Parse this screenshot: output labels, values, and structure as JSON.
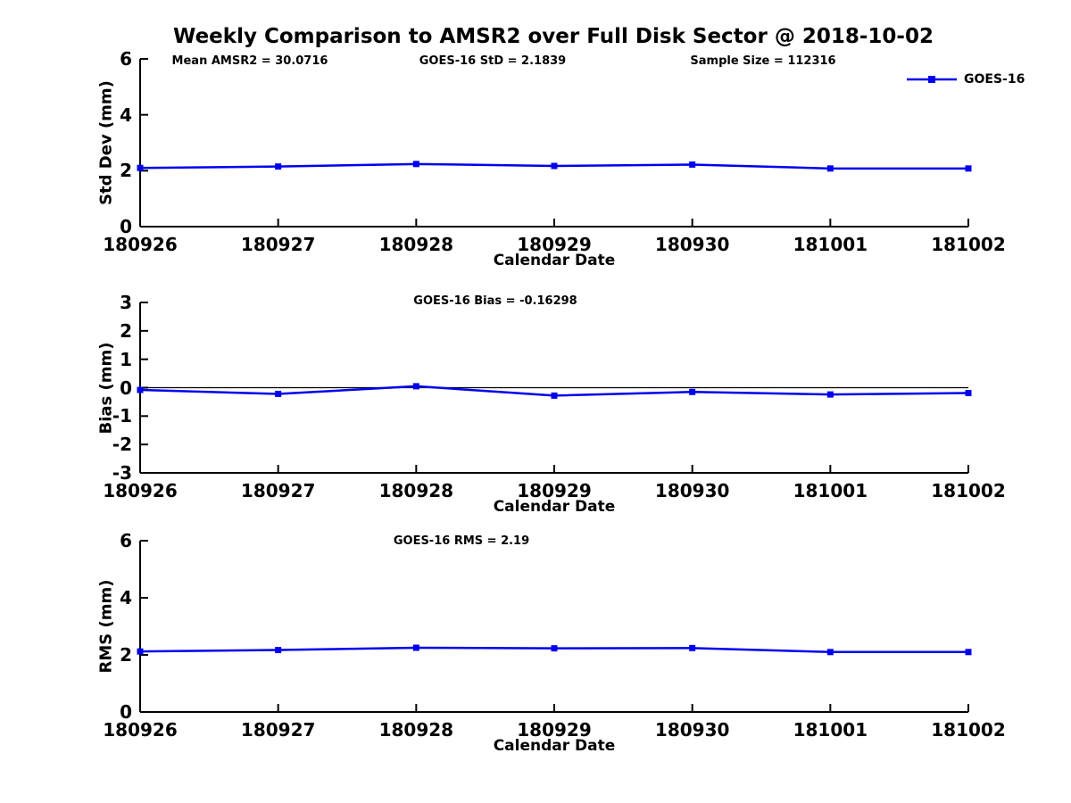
{
  "title": "Weekly Comparison to AMSR2 over Full Disk Sector @ 2018-10-02",
  "colors": {
    "series_line": "#0000EE",
    "axis": "#000000",
    "text": "#000000",
    "background": "#FFFFFF"
  },
  "legend": {
    "label": "GOES-16",
    "marker": "square",
    "position": "top-right"
  },
  "chart_data": [
    {
      "type": "line",
      "ylabel": "Std Dev (mm)",
      "xlabel": "Calendar Date",
      "annotations": [
        "Mean AMSR2 = 30.0716",
        "GOES-16 StD = 2.1839",
        "Sample Size = 112316"
      ],
      "categories": [
        "180926",
        "180927",
        "180928",
        "180929",
        "180930",
        "181001",
        "181002"
      ],
      "yticks": [
        "0",
        "2",
        "4",
        "6"
      ],
      "ylim": [
        0,
        6
      ],
      "grid": false,
      "zero_line": false,
      "series": [
        {
          "name": "GOES-16",
          "marker": "square",
          "color": "#0000EE",
          "values": [
            2.1,
            2.15,
            2.24,
            2.17,
            2.22,
            2.08,
            2.08
          ]
        }
      ]
    },
    {
      "type": "line",
      "ylabel": "Bias (mm)",
      "xlabel": "Calendar Date",
      "annotations": [
        "GOES-16 Bias  = -0.16298"
      ],
      "categories": [
        "180926",
        "180927",
        "180928",
        "180929",
        "180930",
        "181001",
        "181002"
      ],
      "yticks": [
        "3",
        "2",
        "1",
        "0",
        "-1",
        "-2",
        "-3"
      ],
      "ylim": [
        -3,
        3
      ],
      "grid": false,
      "zero_line": true,
      "series": [
        {
          "name": "GOES-16",
          "marker": "square",
          "color": "#0000EE",
          "values": [
            -0.08,
            -0.22,
            0.05,
            -0.28,
            -0.15,
            -0.24,
            -0.19
          ]
        }
      ]
    },
    {
      "type": "line",
      "ylabel": "RMS (mm)",
      "xlabel": "Calendar Date",
      "annotations": [
        "GOES-16 RMS = 2.19"
      ],
      "categories": [
        "180926",
        "180927",
        "180928",
        "180929",
        "180930",
        "181001",
        "181002"
      ],
      "yticks": [
        "0",
        "2",
        "4",
        "6"
      ],
      "ylim": [
        0,
        6
      ],
      "grid": false,
      "zero_line": false,
      "series": [
        {
          "name": "GOES-16",
          "marker": "square",
          "color": "#0000EE",
          "values": [
            2.12,
            2.17,
            2.25,
            2.23,
            2.24,
            2.1,
            2.1
          ]
        }
      ]
    }
  ]
}
